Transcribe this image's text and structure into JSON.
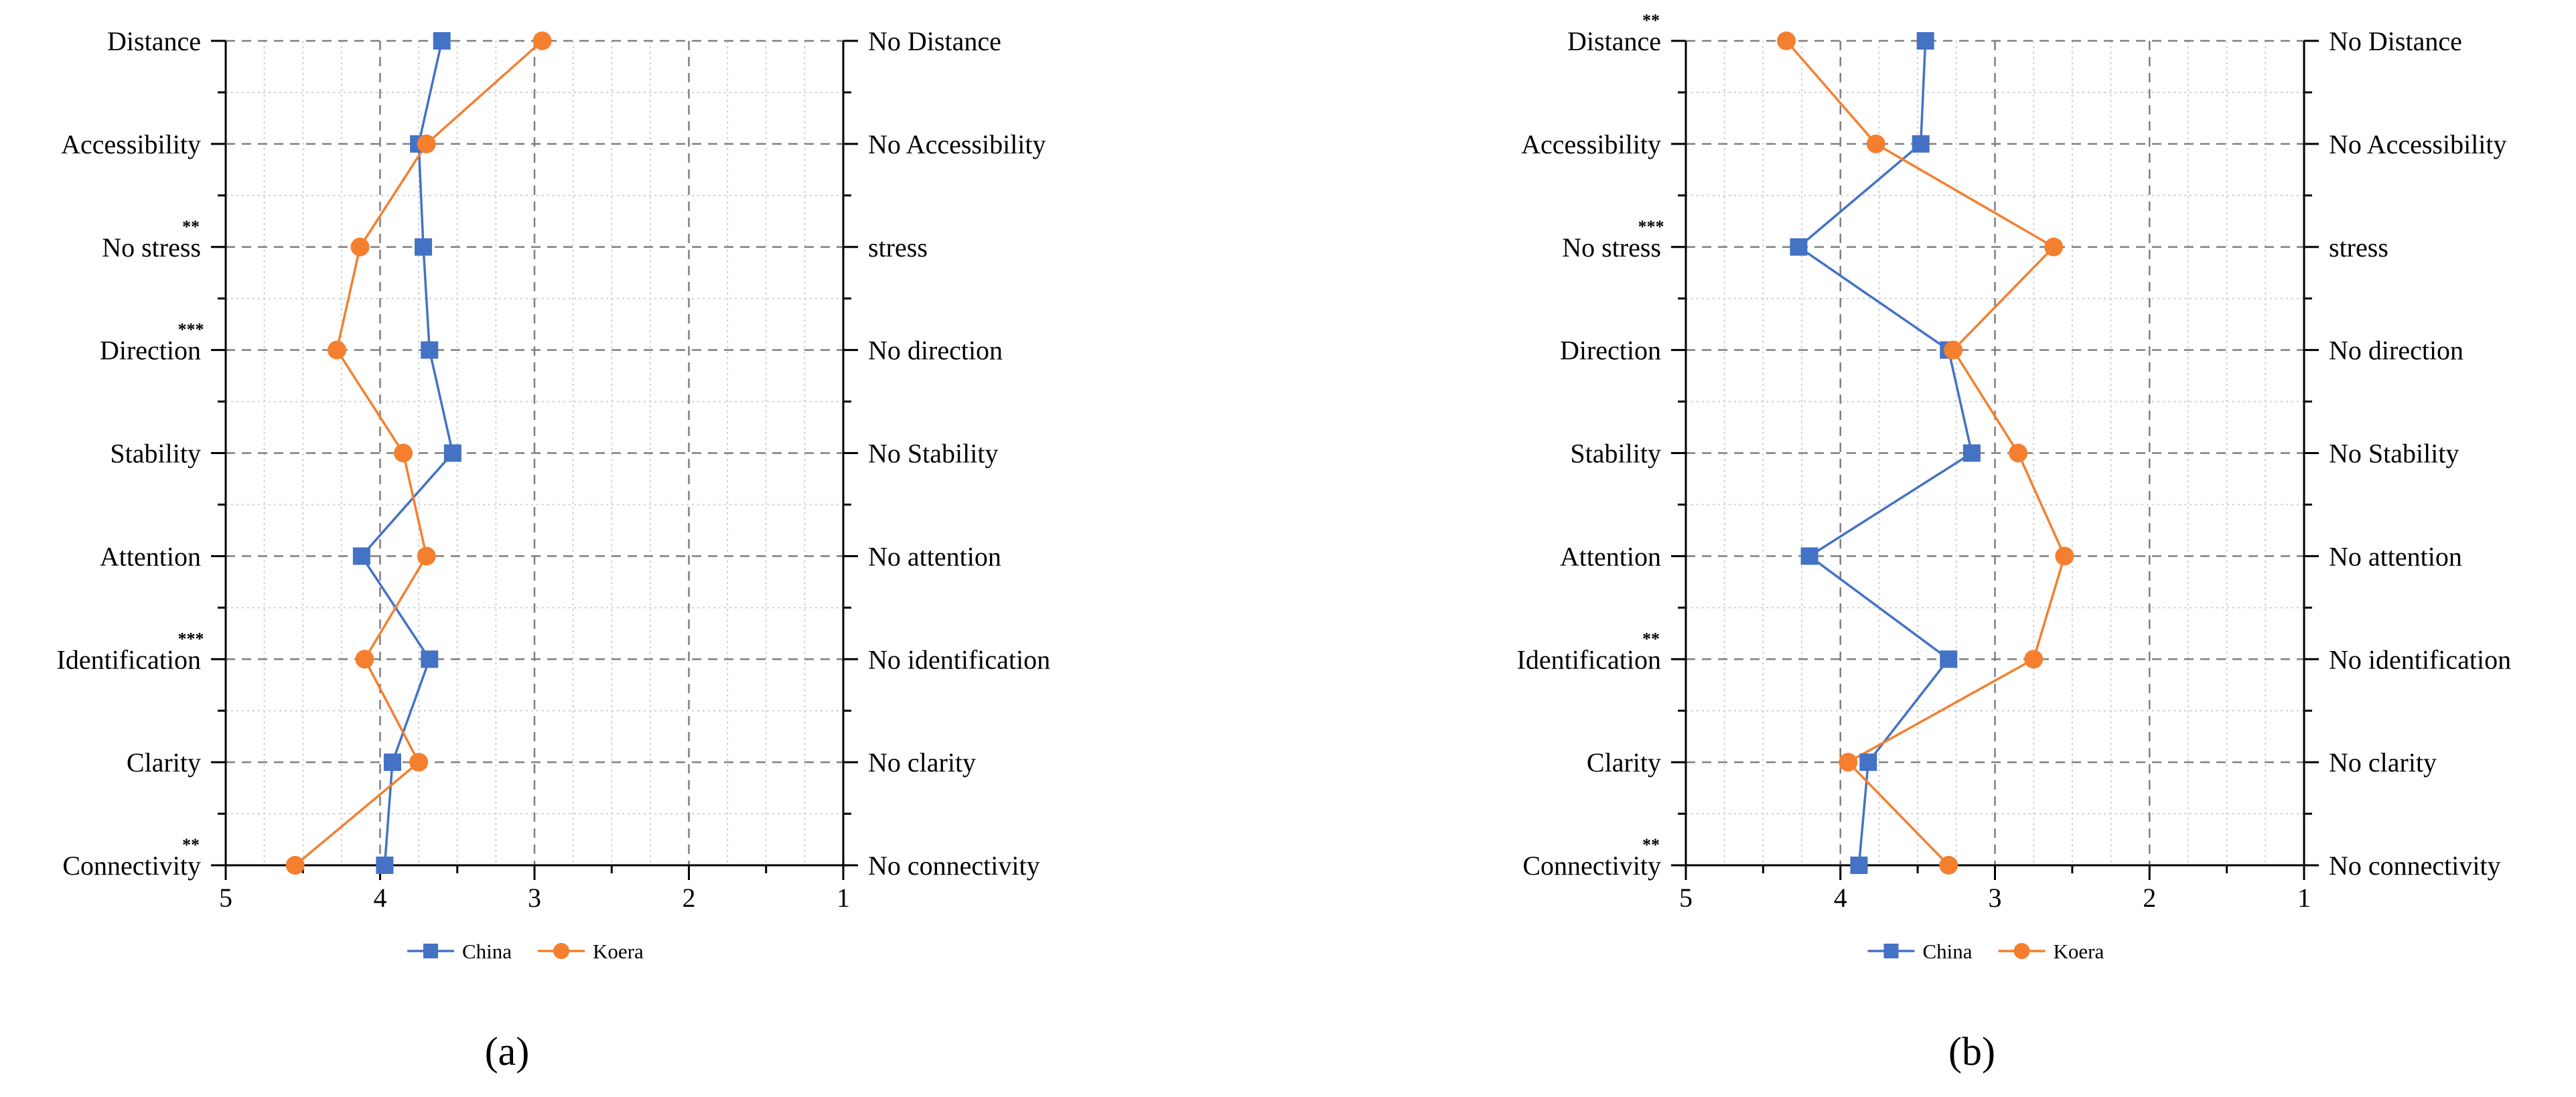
{
  "figure": {
    "panel_labels": [
      "(a)",
      "(b)"
    ]
  },
  "colors": {
    "china": "#4472C4",
    "korea": "#F47F2F",
    "axis": "#000000",
    "major_grid": "#7f7f7f",
    "minor_grid": "#d0d0d0"
  },
  "chart_data": [
    {
      "type": "line",
      "panel": "(a)",
      "left_labels": [
        "Distance",
        "Accessibility",
        "No stress",
        "Direction",
        "Stability",
        "Attention",
        "Identification",
        "Clarity",
        "Connectivity"
      ],
      "right_labels": [
        "No Distance",
        "No Accessibility",
        "stress",
        "No direction",
        "No Stability",
        "No attention",
        "No identification",
        "No clarity",
        "No connectivity"
      ],
      "significance": [
        "",
        "",
        "**",
        "***",
        "",
        "",
        "***",
        "",
        "**"
      ],
      "xlim": [
        5,
        1
      ],
      "xticks": [
        5,
        4,
        3,
        2,
        1
      ],
      "grid": true,
      "legend_position": "bottom-center",
      "series": [
        {
          "name": "China",
          "marker": "square",
          "values": [
            3.6,
            3.75,
            3.72,
            3.68,
            3.53,
            4.12,
            3.68,
            3.92,
            3.97
          ]
        },
        {
          "name": "Koera",
          "marker": "circle",
          "values": [
            2.95,
            3.7,
            4.13,
            4.28,
            3.85,
            3.7,
            4.1,
            3.75,
            4.55
          ]
        }
      ]
    },
    {
      "type": "line",
      "panel": "(b)",
      "left_labels": [
        "Distance",
        "Accessibility",
        "No stress",
        "Direction",
        "Stability",
        "Attention",
        "Identification",
        "Clarity",
        "Connectivity"
      ],
      "right_labels": [
        "No Distance",
        "No Accessibility",
        "stress",
        "No direction",
        "No Stability",
        "No attention",
        "No identification",
        "No clarity",
        "No connectivity"
      ],
      "significance": [
        "**",
        "",
        "***",
        "",
        "",
        "",
        "**",
        "",
        "**"
      ],
      "xlim": [
        5,
        1
      ],
      "xticks": [
        5,
        4,
        3,
        2,
        1
      ],
      "grid": true,
      "legend_position": "bottom-center",
      "series": [
        {
          "name": "China",
          "marker": "square",
          "values": [
            3.45,
            3.48,
            4.27,
            3.3,
            3.15,
            4.2,
            3.3,
            3.82,
            3.88
          ]
        },
        {
          "name": "Koera",
          "marker": "circle",
          "values": [
            4.35,
            3.77,
            2.62,
            3.27,
            2.85,
            2.55,
            2.75,
            3.95,
            3.3
          ]
        }
      ]
    }
  ]
}
